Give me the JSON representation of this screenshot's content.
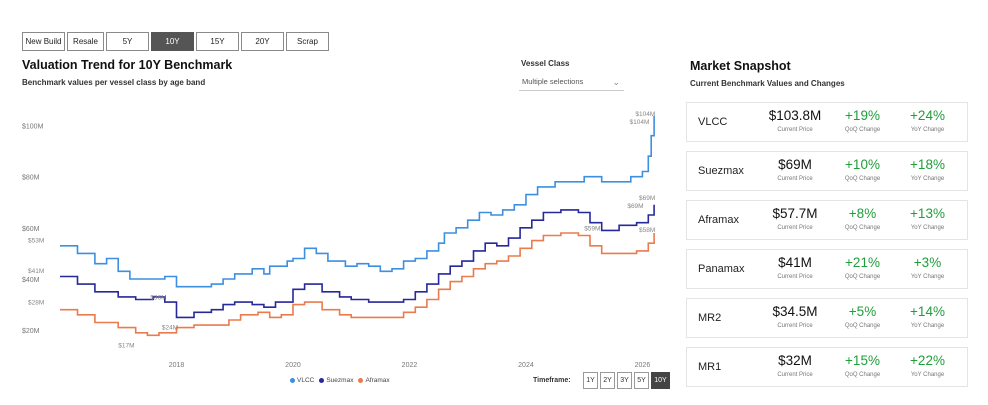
{
  "tabs": [
    "New Build",
    "Resale",
    "5Y",
    "10Y",
    "15Y",
    "20Y",
    "Scrap"
  ],
  "active_tab": "10Y",
  "title": "Valuation Trend for 10Y Benchmark",
  "subtitle": "Benchmark values per vessel class by age band",
  "vessel_class": {
    "label": "Vessel Class",
    "value": "Multiple selections",
    "icon": "chevron-down-icon"
  },
  "timeframe": {
    "label": "Timeframe:",
    "options": [
      "1Y",
      "2Y",
      "3Y",
      "5Y",
      "10Y"
    ],
    "active": "10Y"
  },
  "colors": {
    "VLCC": "#3d8fe0",
    "Suezmax": "#27289a",
    "Aframax": "#ea7b4d",
    "positive": "#1f9e3a",
    "active_tab": "#555555"
  },
  "chart_data": {
    "type": "line",
    "title": "Valuation Trend for 10Y Benchmark",
    "xlabel": "",
    "ylabel": "",
    "x_ticks": [
      "2018",
      "2020",
      "2022",
      "2024",
      "2026"
    ],
    "y_ticks": [
      "$20M",
      "$40M",
      "$60M",
      "$80M",
      "$100M"
    ],
    "ylim": [
      15,
      108
    ],
    "xlim": [
      2016.0,
      2026.25
    ],
    "grid": false,
    "legend": "bottom",
    "series": [
      {
        "name": "VLCC",
        "points": [
          [
            2016.0,
            53
          ],
          [
            2016.3,
            50
          ],
          [
            2016.6,
            46
          ],
          [
            2016.8,
            48
          ],
          [
            2017.0,
            43
          ],
          [
            2017.2,
            40
          ],
          [
            2017.6,
            40
          ],
          [
            2017.8,
            41
          ],
          [
            2018.0,
            37
          ],
          [
            2018.3,
            37
          ],
          [
            2018.6,
            38
          ],
          [
            2018.8,
            40
          ],
          [
            2019.0,
            42
          ],
          [
            2019.3,
            44
          ],
          [
            2019.5,
            42
          ],
          [
            2019.6,
            45
          ],
          [
            2019.9,
            47
          ],
          [
            2020.0,
            48
          ],
          [
            2020.2,
            52
          ],
          [
            2020.4,
            50
          ],
          [
            2020.6,
            47
          ],
          [
            2020.9,
            45
          ],
          [
            2021.1,
            46
          ],
          [
            2021.3,
            45
          ],
          [
            2021.5,
            43
          ],
          [
            2021.7,
            44
          ],
          [
            2021.9,
            47
          ],
          [
            2022.1,
            48
          ],
          [
            2022.3,
            51
          ],
          [
            2022.5,
            54
          ],
          [
            2022.6,
            58
          ],
          [
            2022.8,
            60
          ],
          [
            2023.0,
            63
          ],
          [
            2023.2,
            66
          ],
          [
            2023.4,
            65
          ],
          [
            2023.6,
            67
          ],
          [
            2023.8,
            69
          ],
          [
            2024.0,
            73
          ],
          [
            2024.2,
            76
          ],
          [
            2024.5,
            78
          ],
          [
            2024.8,
            78
          ],
          [
            2025.0,
            80
          ],
          [
            2025.3,
            78
          ],
          [
            2025.6,
            78
          ],
          [
            2025.8,
            80
          ],
          [
            2026.0,
            82
          ],
          [
            2026.1,
            88
          ],
          [
            2026.15,
            96
          ],
          [
            2026.2,
            103.8
          ]
        ],
        "start_label": "$53M",
        "low_label": "$36M",
        "end_label": "$104M"
      },
      {
        "name": "Suezmax",
        "points": [
          [
            2016.0,
            41
          ],
          [
            2016.3,
            38
          ],
          [
            2016.6,
            35
          ],
          [
            2016.8,
            35
          ],
          [
            2017.0,
            33
          ],
          [
            2017.3,
            32
          ],
          [
            2017.6,
            33
          ],
          [
            2017.8,
            31
          ],
          [
            2018.0,
            25
          ],
          [
            2018.3,
            27
          ],
          [
            2018.6,
            28
          ],
          [
            2018.8,
            30
          ],
          [
            2019.0,
            31
          ],
          [
            2019.3,
            30
          ],
          [
            2019.5,
            29
          ],
          [
            2019.7,
            31
          ],
          [
            2020.0,
            36
          ],
          [
            2020.2,
            38
          ],
          [
            2020.5,
            35
          ],
          [
            2020.8,
            33
          ],
          [
            2021.0,
            32
          ],
          [
            2021.3,
            31
          ],
          [
            2021.6,
            31
          ],
          [
            2021.9,
            32
          ],
          [
            2022.1,
            35
          ],
          [
            2022.3,
            38
          ],
          [
            2022.5,
            42
          ],
          [
            2022.7,
            45
          ],
          [
            2022.9,
            47
          ],
          [
            2023.1,
            51
          ],
          [
            2023.3,
            54
          ],
          [
            2023.5,
            53
          ],
          [
            2023.7,
            56
          ],
          [
            2023.9,
            60
          ],
          [
            2024.1,
            63
          ],
          [
            2024.3,
            66
          ],
          [
            2024.6,
            67
          ],
          [
            2024.9,
            66
          ],
          [
            2025.1,
            62
          ],
          [
            2025.3,
            59
          ],
          [
            2025.6,
            61
          ],
          [
            2025.9,
            62
          ],
          [
            2026.1,
            65
          ],
          [
            2026.2,
            69
          ]
        ],
        "start_label": "$41M",
        "low_label": "$24M",
        "mid_label": "$59M",
        "end_label": "$69M"
      },
      {
        "name": "Aframax",
        "points": [
          [
            2016.0,
            28
          ],
          [
            2016.3,
            26
          ],
          [
            2016.6,
            23
          ],
          [
            2016.8,
            23
          ],
          [
            2017.0,
            21
          ],
          [
            2017.3,
            19
          ],
          [
            2017.5,
            18
          ],
          [
            2017.7,
            19
          ],
          [
            2018.0,
            21
          ],
          [
            2018.3,
            22
          ],
          [
            2018.6,
            22
          ],
          [
            2018.9,
            24
          ],
          [
            2019.1,
            26
          ],
          [
            2019.4,
            27
          ],
          [
            2019.6,
            25
          ],
          [
            2019.8,
            26
          ],
          [
            2020.0,
            30
          ],
          [
            2020.2,
            31
          ],
          [
            2020.5,
            28
          ],
          [
            2020.8,
            26
          ],
          [
            2021.0,
            25
          ],
          [
            2021.3,
            25
          ],
          [
            2021.6,
            25
          ],
          [
            2021.9,
            27
          ],
          [
            2022.1,
            29
          ],
          [
            2022.3,
            32
          ],
          [
            2022.5,
            36
          ],
          [
            2022.7,
            39
          ],
          [
            2022.9,
            41
          ],
          [
            2023.1,
            44
          ],
          [
            2023.3,
            46
          ],
          [
            2023.5,
            47
          ],
          [
            2023.7,
            49
          ],
          [
            2023.9,
            52
          ],
          [
            2024.1,
            55
          ],
          [
            2024.3,
            57
          ],
          [
            2024.6,
            58
          ],
          [
            2024.9,
            57
          ],
          [
            2025.1,
            53
          ],
          [
            2025.3,
            50
          ],
          [
            2025.6,
            50
          ],
          [
            2025.9,
            51
          ],
          [
            2026.1,
            54
          ],
          [
            2026.2,
            58
          ]
        ],
        "start_label": "$28M",
        "low_label": "$17M",
        "end_label": "$58M"
      }
    ]
  },
  "market_snapshot": {
    "title": "Market Snapshot",
    "subtitle": "Current Benchmark Values and Changes",
    "price_label": "Current Price",
    "qoq_label": "QoQ Change",
    "yoy_label": "YoY Change",
    "rows": [
      {
        "name": "VLCC",
        "price": "$103.8M",
        "qoq": "+19%",
        "yoy": "+24%"
      },
      {
        "name": "Suezmax",
        "price": "$69M",
        "qoq": "+10%",
        "yoy": "+18%"
      },
      {
        "name": "Aframax",
        "price": "$57.7M",
        "qoq": "+8%",
        "yoy": "+13%"
      },
      {
        "name": "Panamax",
        "price": "$41M",
        "qoq": "+21%",
        "yoy": "+3%"
      },
      {
        "name": "MR2",
        "price": "$34.5M",
        "qoq": "+5%",
        "yoy": "+14%"
      },
      {
        "name": "MR1",
        "price": "$32M",
        "qoq": "+15%",
        "yoy": "+22%"
      }
    ]
  }
}
